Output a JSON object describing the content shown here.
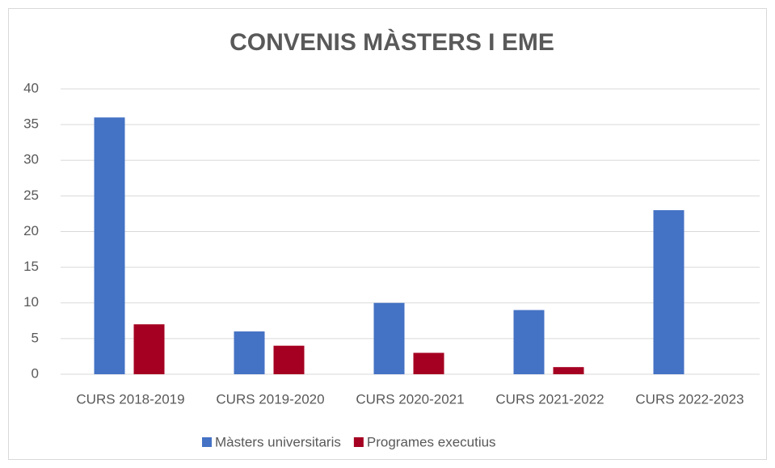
{
  "chart_data": {
    "type": "bar",
    "title": "CONVENIS MÀSTERS I EME",
    "categories": [
      "CURS 2018-2019",
      "CURS 2019-2020",
      "CURS 2020-2021",
      "CURS 2021-2022",
      "CURS 2022-2023"
    ],
    "series": [
      {
        "name": "Màsters universitaris",
        "color": "#4472c4",
        "values": [
          36,
          6,
          10,
          9,
          23
        ]
      },
      {
        "name": "Programes executius",
        "color": "#a50021",
        "values": [
          7,
          4,
          3,
          1,
          0
        ]
      }
    ],
    "ylim": [
      0,
      40
    ],
    "yticks": [
      0,
      5,
      10,
      15,
      20,
      25,
      30,
      35,
      40
    ],
    "grid": true,
    "legend": "bottom"
  }
}
